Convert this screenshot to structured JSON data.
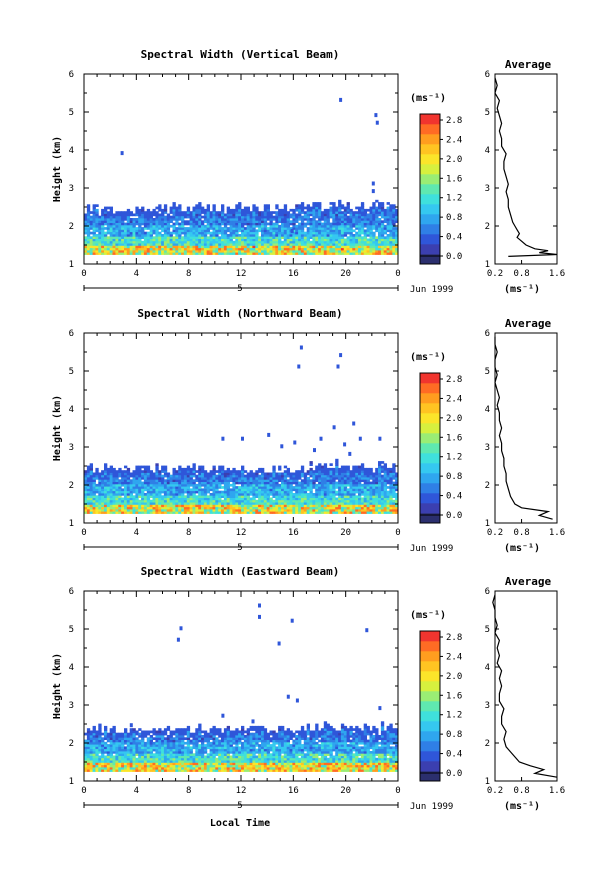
{
  "colors": {
    "colorbar": [
      "#2b2f6e",
      "#3b3fb0",
      "#2f56d9",
      "#2f7fe6",
      "#2fa6ef",
      "#35c8f0",
      "#3fe0dc",
      "#5fe8b0",
      "#9aed74",
      "#d7f03e",
      "#fbe52a",
      "#ffc422",
      "#ff9d1f",
      "#ff6b24",
      "#f1342e"
    ],
    "ink": "#000000",
    "background": "#ffffff"
  },
  "figure": {
    "xlabel": "Local Time",
    "date_label": "Jun 1999",
    "day_label": "5",
    "avg_unit": "(ms⁻¹)",
    "cbar_unit": "(ms⁻¹)"
  },
  "chart_data": [
    {
      "type": "heatmap",
      "title": "Spectral Width (Vertical Beam)",
      "xlabel": "Local Time",
      "ylabel": "Height (km)",
      "x_ticks": [
        "0",
        "4",
        "8",
        "12",
        "16",
        "20",
        "0"
      ],
      "y_ticks": [
        "1",
        "2",
        "3",
        "4",
        "5",
        "6"
      ],
      "xlim": [
        0,
        24
      ],
      "ylim": [
        1,
        6
      ],
      "colorbar": {
        "label": "(ms⁻¹)",
        "ticks": [
          "0.0",
          "0.4",
          "0.8",
          "1.2",
          "1.6",
          "2.0",
          "2.4",
          "2.8"
        ],
        "range": [
          0,
          2.9
        ]
      },
      "layer_top_km": 2.45,
      "sparse_echoes": [
        [
          19.5,
          5.3
        ],
        [
          22.2,
          4.9
        ],
        [
          22.3,
          4.7
        ],
        [
          2.8,
          3.9
        ],
        [
          22.0,
          3.1
        ],
        [
          22.0,
          2.9
        ],
        [
          23.5,
          2.1
        ],
        [
          19.3,
          2.05
        ],
        [
          20.5,
          2.0
        ],
        [
          15.8,
          1.85
        ]
      ],
      "average": {
        "title": "Average",
        "xlabel": "(ms⁻¹)",
        "x_ticks": [
          "0.2",
          "0.8",
          "1.6"
        ],
        "xlim": [
          0.2,
          1.6
        ],
        "ylim": [
          1,
          6
        ],
        "height_km": [
          1.2,
          1.25,
          1.3,
          1.35,
          1.4,
          1.5,
          1.6,
          1.7,
          1.8,
          1.9,
          2.0,
          2.1,
          2.3,
          2.5,
          2.7,
          2.9,
          3.1,
          3.3,
          3.5,
          3.7,
          3.9,
          4.1,
          4.3,
          4.5,
          4.7,
          4.9,
          5.1,
          5.3,
          5.5,
          5.7,
          5.9
        ],
        "width_ms": [
          0.5,
          1.6,
          1.2,
          1.4,
          1.1,
          0.9,
          0.8,
          0.7,
          0.75,
          0.7,
          0.65,
          0.6,
          0.55,
          0.5,
          0.5,
          0.45,
          0.5,
          0.45,
          0.4,
          0.4,
          0.45,
          0.35,
          0.35,
          0.3,
          0.35,
          0.3,
          0.25,
          0.3,
          0.2,
          0.25,
          0.2
        ]
      }
    },
    {
      "type": "heatmap",
      "title": "Spectral Width (Northward Beam)",
      "xlabel": "Local Time",
      "ylabel": "Height (km)",
      "x_ticks": [
        "0",
        "4",
        "8",
        "12",
        "16",
        "20",
        "0"
      ],
      "y_ticks": [
        "1",
        "2",
        "3",
        "4",
        "5",
        "6"
      ],
      "xlim": [
        0,
        24
      ],
      "ylim": [
        1,
        6
      ],
      "colorbar": {
        "label": "(ms⁻¹)",
        "ticks": [
          "0.0",
          "0.4",
          "0.8",
          "1.2",
          "1.6",
          "2.0",
          "2.4",
          "2.8"
        ],
        "range": [
          0,
          2.9
        ]
      },
      "layer_top_km": 2.4,
      "sparse_echoes": [
        [
          16.5,
          5.6
        ],
        [
          16.3,
          5.1
        ],
        [
          19.5,
          5.4
        ],
        [
          19.3,
          5.1
        ],
        [
          19.0,
          3.5
        ],
        [
          20.5,
          3.6
        ],
        [
          12.0,
          3.2
        ],
        [
          14.0,
          3.3
        ],
        [
          16.0,
          3.1
        ],
        [
          18.0,
          3.2
        ],
        [
          19.8,
          3.05
        ],
        [
          21.0,
          3.2
        ],
        [
          22.5,
          3.2
        ],
        [
          10.5,
          3.2
        ],
        [
          15.0,
          3.0
        ],
        [
          17.5,
          2.9
        ],
        [
          20.2,
          2.8
        ]
      ],
      "average": {
        "title": "Average",
        "xlabel": "(ms⁻¹)",
        "x_ticks": [
          "0.2",
          "0.8",
          "1.6"
        ],
        "xlim": [
          0.2,
          1.6
        ],
        "ylim": [
          1,
          6
        ],
        "height_km": [
          1.1,
          1.2,
          1.3,
          1.4,
          1.5,
          1.7,
          1.9,
          2.1,
          2.3,
          2.5,
          2.7,
          2.9,
          3.1,
          3.3,
          3.5,
          3.7,
          3.9,
          4.1,
          4.3,
          4.5,
          4.7,
          4.9,
          5.1,
          5.3,
          5.5,
          5.7,
          5.9
        ],
        "width_ms": [
          1.5,
          1.2,
          1.4,
          0.8,
          0.65,
          0.55,
          0.5,
          0.45,
          0.45,
          0.4,
          0.4,
          0.35,
          0.35,
          0.3,
          0.35,
          0.3,
          0.3,
          0.25,
          0.3,
          0.25,
          0.2,
          0.25,
          0.2,
          0.2,
          0.25,
          0.2,
          0.2
        ]
      }
    },
    {
      "type": "heatmap",
      "title": "Spectral Width (Eastward Beam)",
      "xlabel": "Local Time",
      "ylabel": "Height (km)",
      "x_ticks": [
        "0",
        "4",
        "8",
        "12",
        "16",
        "20",
        "0"
      ],
      "y_ticks": [
        "1",
        "2",
        "3",
        "4",
        "5",
        "6"
      ],
      "xlim": [
        0,
        24
      ],
      "ylim": [
        1,
        6
      ],
      "colorbar": {
        "label": "(ms⁻¹)",
        "ticks": [
          "0.0",
          "0.4",
          "0.8",
          "1.2",
          "1.6",
          "2.0",
          "2.4",
          "2.8"
        ],
        "range": [
          0,
          2.9
        ]
      },
      "layer_top_km": 2.35,
      "sparse_echoes": [
        [
          13.3,
          5.6
        ],
        [
          13.3,
          5.3
        ],
        [
          15.8,
          5.2
        ],
        [
          7.3,
          5.0
        ],
        [
          7.1,
          4.7
        ],
        [
          21.5,
          4.95
        ],
        [
          14.8,
          4.6
        ],
        [
          15.5,
          3.2
        ],
        [
          16.2,
          3.1
        ],
        [
          10.5,
          2.7
        ],
        [
          12.8,
          2.55
        ],
        [
          22.5,
          2.9
        ],
        [
          3.5,
          2.45
        ]
      ],
      "average": {
        "title": "Average",
        "xlabel": "(ms⁻¹)",
        "x_ticks": [
          "0.2",
          "0.8",
          "1.6"
        ],
        "xlim": [
          0.2,
          1.6
        ],
        "ylim": [
          1,
          6
        ],
        "height_km": [
          1.1,
          1.2,
          1.3,
          1.4,
          1.5,
          1.7,
          1.9,
          2.1,
          2.3,
          2.5,
          2.7,
          2.9,
          3.1,
          3.3,
          3.5,
          3.7,
          3.9,
          4.1,
          4.3,
          4.5,
          4.7,
          4.9,
          5.1,
          5.3,
          5.5,
          5.7,
          5.9
        ],
        "width_ms": [
          1.6,
          1.1,
          1.3,
          1.0,
          0.75,
          0.6,
          0.45,
          0.4,
          0.45,
          0.35,
          0.35,
          0.4,
          0.3,
          0.3,
          0.35,
          0.3,
          0.35,
          0.25,
          0.3,
          0.25,
          0.3,
          0.2,
          0.25,
          0.2,
          0.2,
          0.15,
          0.2
        ]
      }
    }
  ]
}
